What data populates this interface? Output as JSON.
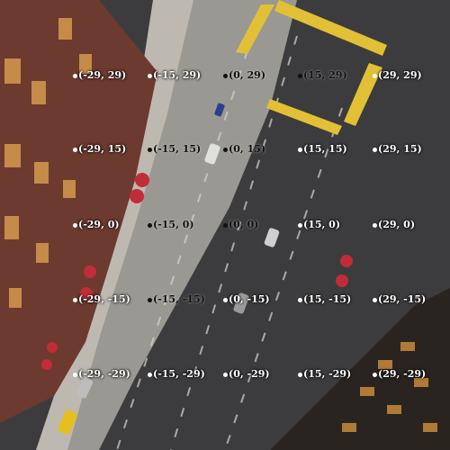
{
  "grid": {
    "columns": [
      "-29",
      "-15",
      "0",
      "15",
      "29"
    ],
    "rows": [
      "29",
      "15",
      "0",
      "-15",
      "-29"
    ],
    "labels": [
      [
        "(-29, 29)",
        "(-15, 29)",
        "(0, 29)",
        "(15, 29)",
        "(29, 29)"
      ],
      [
        "(-29, 15)",
        "(-15, 15)",
        "(0, 15)",
        "(15, 15)",
        "(29, 15)"
      ],
      [
        "(-29, 0)",
        "(-15, 0)",
        "(0, 0)",
        "(15, 0)",
        "(29, 0)"
      ],
      [
        "(-29, -15)",
        "(-15, -15)",
        "(0, -15)",
        "(15, -15)",
        "(29, -15)"
      ],
      [
        "(-29, -29)",
        "(-15, -29)",
        "(0, -29)",
        "(15, -29)",
        "(29, -29)"
      ]
    ],
    "dark_cells": [
      "0,2",
      "0,3",
      "1,1",
      "1,2",
      "2,1",
      "2,2",
      "3,1"
    ],
    "marker_light_color": "#ffffff",
    "marker_dark_color": "#111111"
  },
  "scene": {
    "description_colors": {
      "building_left": "#6e3a2c",
      "window_lit": "#e0a050",
      "sidewalk": "#b8b4ac",
      "road_sun": "#8e8c88",
      "road_shadow": "#3e3e40",
      "crosswalk": "#e7c43a",
      "umbrella": "#c0303a",
      "taxi": "#e8c020"
    }
  }
}
